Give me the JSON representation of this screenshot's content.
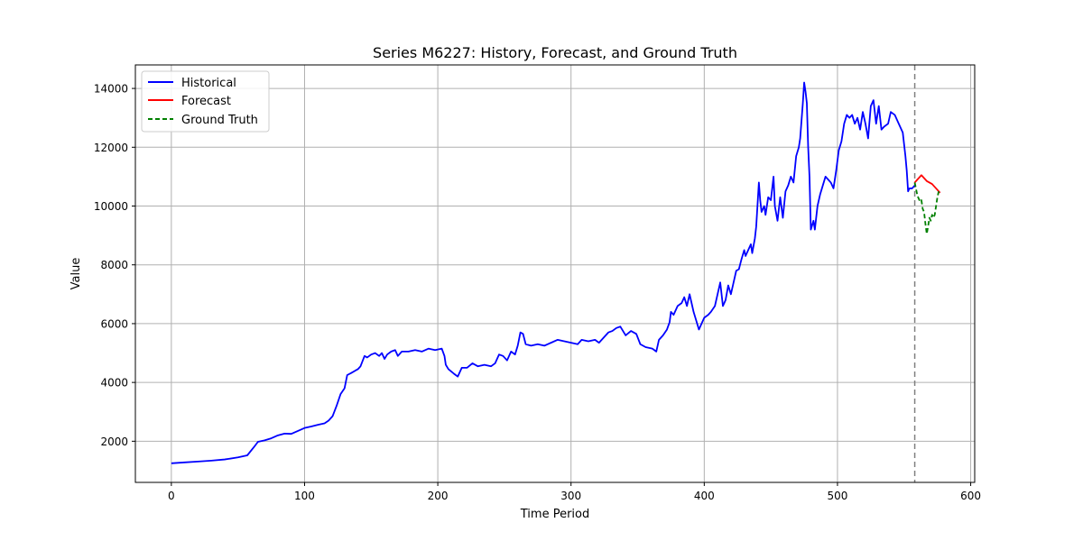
{
  "chart_data": {
    "type": "line",
    "title": "Series M6227: History, Forecast, and Ground Truth",
    "xlabel": "Time Period",
    "ylabel": "Value",
    "xlim": [
      -27,
      603
    ],
    "ylim": [
      600,
      14800
    ],
    "x_ticks": [
      0,
      100,
      200,
      300,
      400,
      500,
      600
    ],
    "y_ticks": [
      2000,
      4000,
      6000,
      8000,
      10000,
      12000,
      14000
    ],
    "grid": true,
    "legend_position": "upper-left",
    "forecast_start_marker": 558,
    "series": [
      {
        "name": "Historical",
        "color": "#0000ff",
        "style": "solid",
        "points": [
          [
            0,
            1250
          ],
          [
            10,
            1280
          ],
          [
            20,
            1310
          ],
          [
            30,
            1340
          ],
          [
            40,
            1380
          ],
          [
            50,
            1450
          ],
          [
            57,
            1520
          ],
          [
            62,
            1800
          ],
          [
            65,
            1980
          ],
          [
            70,
            2030
          ],
          [
            75,
            2100
          ],
          [
            80,
            2200
          ],
          [
            85,
            2260
          ],
          [
            90,
            2250
          ],
          [
            95,
            2350
          ],
          [
            100,
            2450
          ],
          [
            105,
            2500
          ],
          [
            110,
            2560
          ],
          [
            115,
            2610
          ],
          [
            118,
            2700
          ],
          [
            121,
            2850
          ],
          [
            124,
            3200
          ],
          [
            127,
            3600
          ],
          [
            130,
            3800
          ],
          [
            132,
            4250
          ],
          [
            135,
            4320
          ],
          [
            138,
            4400
          ],
          [
            140,
            4450
          ],
          [
            142,
            4550
          ],
          [
            145,
            4900
          ],
          [
            147,
            4850
          ],
          [
            150,
            4950
          ],
          [
            153,
            5000
          ],
          [
            156,
            4900
          ],
          [
            158,
            5000
          ],
          [
            160,
            4800
          ],
          [
            162,
            4950
          ],
          [
            165,
            5050
          ],
          [
            168,
            5100
          ],
          [
            170,
            4900
          ],
          [
            173,
            5050
          ],
          [
            178,
            5050
          ],
          [
            183,
            5100
          ],
          [
            188,
            5050
          ],
          [
            193,
            5150
          ],
          [
            198,
            5100
          ],
          [
            203,
            5150
          ],
          [
            205,
            4900
          ],
          [
            206,
            4600
          ],
          [
            208,
            4450
          ],
          [
            212,
            4300
          ],
          [
            215,
            4200
          ],
          [
            218,
            4500
          ],
          [
            222,
            4500
          ],
          [
            226,
            4650
          ],
          [
            230,
            4550
          ],
          [
            235,
            4600
          ],
          [
            240,
            4550
          ],
          [
            243,
            4650
          ],
          [
            246,
            4950
          ],
          [
            249,
            4900
          ],
          [
            252,
            4750
          ],
          [
            255,
            5050
          ],
          [
            258,
            4950
          ],
          [
            260,
            5250
          ],
          [
            262,
            5700
          ],
          [
            264,
            5650
          ],
          [
            266,
            5300
          ],
          [
            270,
            5250
          ],
          [
            275,
            5300
          ],
          [
            280,
            5250
          ],
          [
            285,
            5350
          ],
          [
            290,
            5450
          ],
          [
            295,
            5400
          ],
          [
            300,
            5350
          ],
          [
            305,
            5300
          ],
          [
            308,
            5450
          ],
          [
            313,
            5400
          ],
          [
            318,
            5450
          ],
          [
            321,
            5350
          ],
          [
            324,
            5500
          ],
          [
            328,
            5700
          ],
          [
            331,
            5750
          ],
          [
            334,
            5850
          ],
          [
            337,
            5900
          ],
          [
            341,
            5600
          ],
          [
            345,
            5750
          ],
          [
            349,
            5650
          ],
          [
            352,
            5300
          ],
          [
            356,
            5200
          ],
          [
            361,
            5150
          ],
          [
            364,
            5050
          ],
          [
            366,
            5450
          ],
          [
            369,
            5600
          ],
          [
            372,
            5800
          ],
          [
            374,
            6050
          ],
          [
            375,
            6400
          ],
          [
            377,
            6300
          ],
          [
            380,
            6600
          ],
          [
            383,
            6700
          ],
          [
            385,
            6900
          ],
          [
            387,
            6600
          ],
          [
            389,
            7000
          ],
          [
            391,
            6600
          ],
          [
            392,
            6400
          ],
          [
            394,
            6100
          ],
          [
            396,
            5800
          ],
          [
            398,
            6000
          ],
          [
            400,
            6200
          ],
          [
            403,
            6300
          ],
          [
            405,
            6400
          ],
          [
            408,
            6600
          ],
          [
            410,
            7000
          ],
          [
            412,
            7400
          ],
          [
            414,
            6600
          ],
          [
            416,
            6800
          ],
          [
            418,
            7300
          ],
          [
            420,
            7000
          ],
          [
            422,
            7400
          ],
          [
            424,
            7800
          ],
          [
            426,
            7850
          ],
          [
            428,
            8200
          ],
          [
            430,
            8500
          ],
          [
            431,
            8300
          ],
          [
            433,
            8500
          ],
          [
            435,
            8700
          ],
          [
            436,
            8400
          ],
          [
            438,
            8900
          ],
          [
            439,
            9300
          ],
          [
            441,
            10800
          ],
          [
            442,
            10200
          ],
          [
            443,
            9800
          ],
          [
            445,
            10000
          ],
          [
            446,
            9700
          ],
          [
            448,
            10300
          ],
          [
            450,
            10200
          ],
          [
            452,
            11000
          ],
          [
            453,
            10000
          ],
          [
            455,
            9500
          ],
          [
            457,
            10300
          ],
          [
            459,
            9600
          ],
          [
            461,
            10500
          ],
          [
            463,
            10700
          ],
          [
            465,
            11000
          ],
          [
            467,
            10800
          ],
          [
            469,
            11700
          ],
          [
            471,
            12000
          ],
          [
            472,
            12300
          ],
          [
            474,
            13500
          ],
          [
            475,
            14200
          ],
          [
            476,
            13900
          ],
          [
            477,
            13500
          ],
          [
            478,
            12000
          ],
          [
            479,
            11000
          ],
          [
            480,
            9200
          ],
          [
            482,
            9500
          ],
          [
            483,
            9200
          ],
          [
            485,
            10000
          ],
          [
            487,
            10400
          ],
          [
            489,
            10700
          ],
          [
            491,
            11000
          ],
          [
            493,
            10900
          ],
          [
            495,
            10800
          ],
          [
            497,
            10600
          ],
          [
            499,
            11200
          ],
          [
            501,
            11900
          ],
          [
            503,
            12200
          ],
          [
            505,
            12800
          ],
          [
            507,
            13100
          ],
          [
            509,
            13000
          ],
          [
            511,
            13100
          ],
          [
            513,
            12800
          ],
          [
            515,
            13000
          ],
          [
            517,
            12600
          ],
          [
            519,
            13200
          ],
          [
            521,
            12800
          ],
          [
            523,
            12300
          ],
          [
            525,
            13400
          ],
          [
            527,
            13600
          ],
          [
            529,
            12800
          ],
          [
            531,
            13400
          ],
          [
            533,
            12600
          ],
          [
            535,
            12700
          ],
          [
            538,
            12800
          ],
          [
            540,
            13200
          ],
          [
            543,
            13100
          ],
          [
            546,
            12800
          ],
          [
            549,
            12500
          ],
          [
            551,
            11700
          ],
          [
            552,
            11200
          ],
          [
            553,
            10500
          ],
          [
            554,
            10600
          ],
          [
            556,
            10600
          ],
          [
            558,
            10700
          ]
        ]
      },
      {
        "name": "Forecast",
        "color": "#ff0000",
        "style": "solid",
        "points": [
          [
            558,
            10800
          ],
          [
            560,
            10900
          ],
          [
            562,
            11000
          ],
          [
            563,
            11050
          ],
          [
            565,
            10950
          ],
          [
            567,
            10850
          ],
          [
            569,
            10800
          ],
          [
            571,
            10750
          ],
          [
            573,
            10650
          ],
          [
            575,
            10550
          ],
          [
            577,
            10450
          ]
        ]
      },
      {
        "name": "Ground Truth",
        "color": "#008000",
        "style": "dashed",
        "points": [
          [
            558,
            10800
          ],
          [
            560,
            10350
          ],
          [
            562,
            10150
          ],
          [
            563,
            10200
          ],
          [
            564,
            9900
          ],
          [
            565,
            9800
          ],
          [
            566,
            9400
          ],
          [
            567,
            9050
          ],
          [
            568,
            9300
          ],
          [
            569,
            9600
          ],
          [
            570,
            9500
          ],
          [
            571,
            9700
          ],
          [
            572,
            9600
          ],
          [
            573,
            9700
          ],
          [
            574,
            10000
          ],
          [
            575,
            10300
          ],
          [
            576,
            10500
          ]
        ]
      }
    ]
  }
}
